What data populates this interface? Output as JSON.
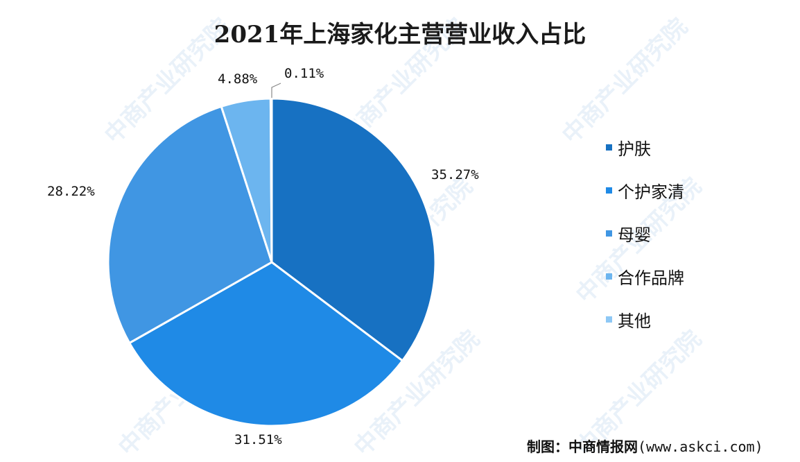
{
  "watermark": "中商产业研究院",
  "source_text": "制图：中商情报网",
  "source_url": "(www.askci.com)",
  "chart_data": {
    "type": "pie",
    "title": "2021年上海家化主营营业收入占比",
    "slices": [
      {
        "label": "护肤",
        "value": 35.27,
        "value_label": "35.27%",
        "color": "#1771c2"
      },
      {
        "label": "个护家清",
        "value": 31.51,
        "value_label": "31.51%",
        "color": "#1f8ae6"
      },
      {
        "label": "母婴",
        "value": 28.22,
        "value_label": "28.22%",
        "color": "#4096e3"
      },
      {
        "label": "合作品牌",
        "value": 4.88,
        "value_label": "4.88%",
        "color": "#6cb5ef"
      },
      {
        "label": "其他",
        "value": 0.11,
        "value_label": "0.11%",
        "color": "#8ec8f5"
      }
    ],
    "start_angle": "12 o'clock",
    "direction": "clockwise",
    "legend_position": "right"
  }
}
